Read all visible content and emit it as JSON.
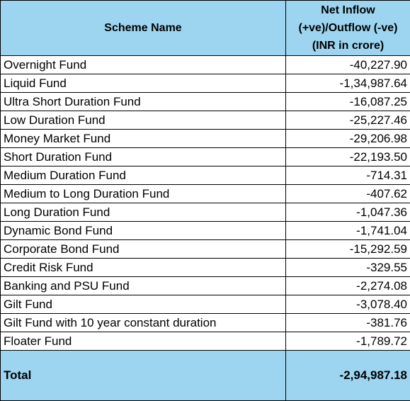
{
  "table": {
    "header": [
      "Scheme Name",
      [
        "Net Inflow",
        "(+ve)/Outflow (-ve)",
        "(INR in crore)"
      ]
    ],
    "rows": [
      [
        "Overnight Fund",
        "-40,227.90"
      ],
      [
        "Liquid Fund",
        "-1,34,987.64"
      ],
      [
        "Ultra Short Duration Fund",
        "-16,087.25"
      ],
      [
        "Low Duration Fund",
        "-25,227.46"
      ],
      [
        "Money Market Fund",
        "-29,206.98"
      ],
      [
        "Short Duration Fund",
        "-22,193.50"
      ],
      [
        "Medium Duration Fund",
        "-714.31"
      ],
      [
        "Medium to Long Duration Fund",
        "-407.62"
      ],
      [
        "Long Duration Fund",
        "-1,047.36"
      ],
      [
        "Dynamic Bond Fund",
        "-1,741.04"
      ],
      [
        "Corporate Bond Fund",
        "-15,292.59"
      ],
      [
        "Credit Risk Fund",
        "-329.55"
      ],
      [
        "Banking and PSU Fund",
        "-2,274.08"
      ],
      [
        "Gilt Fund",
        "-3,078.40"
      ],
      [
        "Gilt Fund with 10 year constant duration",
        "-381.76"
      ],
      [
        "Floater Fund",
        "-1,789.72"
      ]
    ],
    "total": [
      "Total",
      "-2,94,987.18"
    ]
  }
}
